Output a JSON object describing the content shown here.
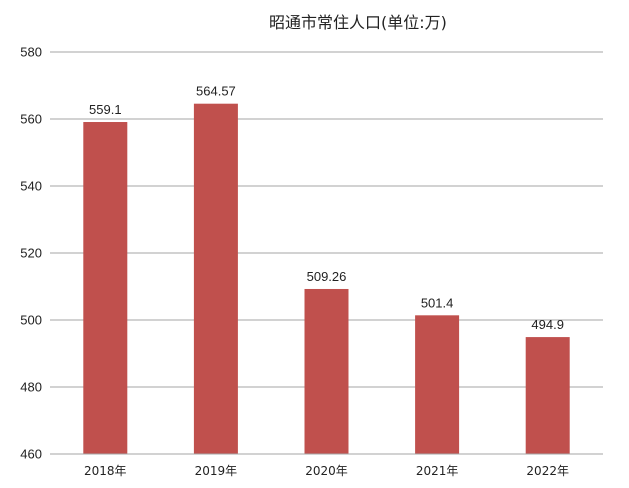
{
  "chart_data": {
    "type": "bar",
    "title": "昭通市常住人口(单位:万)",
    "categories": [
      "2018年",
      "2019年",
      "2020年",
      "2021年",
      "2022年"
    ],
    "values": [
      559.1,
      564.57,
      509.26,
      501.4,
      494.9
    ],
    "data_labels": [
      "559.1",
      "564.57",
      "509.26",
      "501.4",
      "494.9"
    ],
    "ylim": [
      460,
      580
    ],
    "yticks": [
      460,
      480,
      500,
      520,
      540,
      560,
      580
    ],
    "grid": true,
    "legend": "none",
    "bar_color": "#C0504D",
    "grid_color": "#A6A6A6"
  }
}
